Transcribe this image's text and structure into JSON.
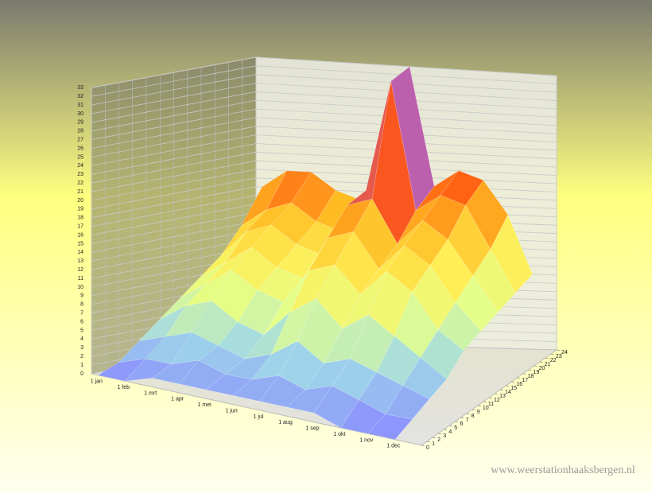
{
  "chart_data": {
    "type": "surface3d",
    "categories": [
      "1 jan",
      "1 feb",
      "1 mrt",
      "1 apr",
      "1 mei",
      "1 jun",
      "1 jul",
      "1 aug",
      "1 sep",
      "1 okt",
      "1 nov",
      "1 dec"
    ],
    "z": [
      0,
      3,
      6,
      9,
      12,
      15,
      18,
      21,
      24
    ],
    "zticks": [
      0,
      1,
      2,
      3,
      4,
      5,
      6,
      7,
      8,
      9,
      10,
      11,
      12,
      13,
      14,
      15,
      16,
      17,
      18,
      19,
      20,
      21,
      22,
      23,
      24
    ],
    "zlim": [
      0,
      24
    ],
    "ylim": [
      0,
      33
    ],
    "yticks": [
      0,
      1,
      2,
      3,
      4,
      5,
      6,
      7,
      8,
      9,
      10,
      11,
      12,
      13,
      14,
      15,
      16,
      17,
      18,
      19,
      20,
      21,
      22,
      23,
      24,
      25,
      26,
      27,
      28,
      29,
      30,
      31,
      32,
      33
    ],
    "grid": true,
    "colorscale": [
      [
        0,
        "#8a8cff"
      ],
      [
        4,
        "#9fd8e8"
      ],
      [
        8,
        "#e2ff8c"
      ],
      [
        12,
        "#ffee55"
      ],
      [
        16,
        "#ffbb22"
      ],
      [
        20,
        "#ff5511"
      ],
      [
        28,
        "#9966ff"
      ]
    ],
    "values": [
      [
        0,
        0,
        1,
        1,
        1,
        1,
        1,
        1,
        1,
        0,
        0,
        0
      ],
      [
        1,
        2,
        2,
        3,
        2,
        2,
        3,
        2,
        3,
        2,
        1,
        1
      ],
      [
        3,
        4,
        5,
        4,
        3,
        4,
        6,
        4,
        5,
        4,
        3,
        2
      ],
      [
        5,
        7,
        8,
        6,
        5,
        8,
        10,
        7,
        9,
        7,
        5,
        3
      ],
      [
        7,
        9,
        11,
        9,
        8,
        12,
        13,
        10,
        13,
        11,
        7,
        5
      ],
      [
        9,
        11,
        13,
        11,
        10,
        15,
        16,
        12,
        15,
        13,
        9,
        6
      ],
      [
        11,
        14,
        15,
        13,
        12,
        18,
        19,
        14,
        17,
        15,
        11,
        7
      ],
      [
        14,
        16,
        17,
        15,
        14,
        19,
        32,
        17,
        19,
        18,
        13,
        8
      ],
      [
        18,
        20,
        20,
        18,
        17,
        21,
        33,
        19,
        21,
        20,
        16,
        9
      ]
    ],
    "watermark": "www.weerstationhaaksbergen.nl"
  }
}
